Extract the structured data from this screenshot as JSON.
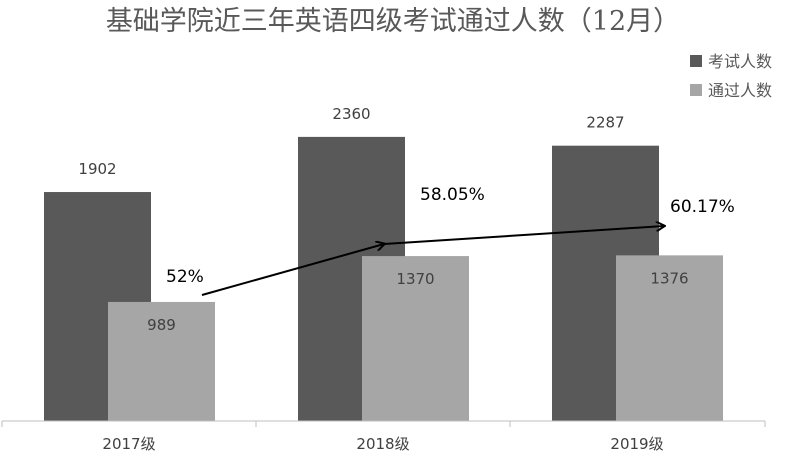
{
  "chart_data": {
    "type": "bar",
    "title": "基础学院近三年英语四级考试通过人数（12月）",
    "categories": [
      "2017级",
      "2018级",
      "2019级"
    ],
    "series": [
      {
        "name": "考试人数",
        "values": [
          1902,
          2360,
          2287
        ],
        "color": "#595959"
      },
      {
        "name": "通过人数",
        "values": [
          989,
          1370,
          1376
        ],
        "color": "#a6a6a6"
      }
    ],
    "pass_rates": [
      "52%",
      "58.05%",
      "60.17%"
    ],
    "ylim": [
      0,
      2600
    ],
    "legend_position": "top-right",
    "grid": false
  }
}
